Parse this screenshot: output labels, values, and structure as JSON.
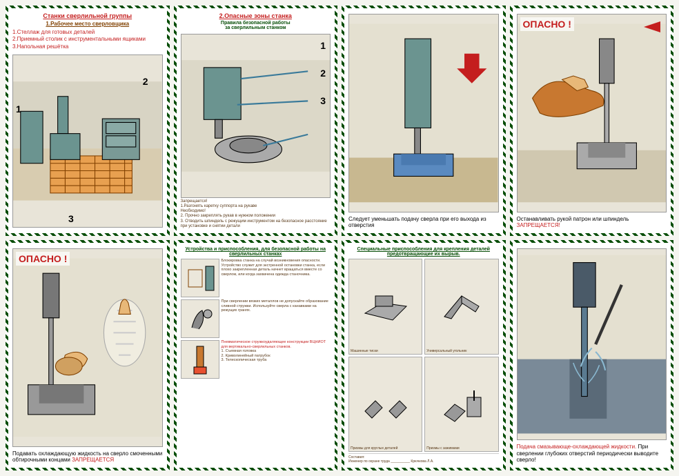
{
  "cards": [
    {
      "title": "Станки сверлильной группы",
      "subtitle": "1.Рабочее место сверловщика",
      "list": "1.Стеллаж для готовых деталей\n2.Приемный столик с  инструментальными ящиками\n3.Напольная решётка",
      "nums": [
        "1",
        "2",
        "3"
      ],
      "illust_colors": {
        "wall": "#d8d4c4",
        "floor": "#e8a050",
        "machine": "#6b9490",
        "cabinet": "#7a9a96"
      }
    },
    {
      "title": "2.Опасные зоны станка",
      "subtitle2": "Правила безопасной работы\nза сверлильным станком",
      "nums": [
        "1",
        "2",
        "3"
      ],
      "smalltext": "Запрещается!\n1.Разгонять каретку суппорта на рукаве\nНеобходимо!\n2. Прочно закреплять рукав в нужном положении\n3. Отводить шпиндель с режущим инструментом на безопасное расстояние при установке и снятии детали",
      "illust_colors": {
        "bg": "#dcd8c8",
        "machine": "#6b9490",
        "base": "#888"
      }
    },
    {
      "caption": "Следует уменьшать подачу сверла при его выхода из отверстия",
      "illust_colors": {
        "bg": "#e4e0d0",
        "machine": "#6b9490",
        "part": "#5a8ac0",
        "floor": "#c8b890"
      }
    },
    {
      "danger": "ОПАСНО !",
      "arrow": true,
      "caption": "Останавливать рукой патрон или шпиндель <span class='red'>ЗАПРЕЩАЕТСЯ!</span>",
      "illust_colors": {
        "bg": "#e4e0d0",
        "hand": "#e8b878",
        "glove": "#c87830",
        "drill": "#888",
        "part": "#aaa"
      }
    },
    {
      "danger": "ОПАСНО !",
      "caption": "Подавать охлаждающую жидкость на сверло смоченными  обтирочными концами <span class='red'>ЗАПРЕЩАЕТСЯ</span>",
      "illust_colors": {
        "bg": "#e4e0d0",
        "drill": "#777",
        "hand": "#e8b878",
        "bandage": "#f0ede0",
        "part": "#999"
      }
    },
    {
      "subtitle2": "Устройства и приспособления, для безопасной работы на сверлильных станках",
      "rows": [
        {
          "text": "Блокировка станка на случай возникновения опасности. Устройство служит для экстренной остановки станка, если плохо закрепленная деталь начнет вращаться вместе со сверлом, или когда захвачена одежда станочника."
        },
        {
          "text": "При сверлении вязких металлов не допускайте образование сливной стружки. Используйте сверла с канавками на режущих гранях."
        },
        {
          "text_red": "Пневматическое стружкоудаляющее конструкции ВЦНИОТ для вертикально-сверлильных станков.",
          "items": "1. Съемная головка\n2. Криволинейный патрубок\n3. Телескопическая труба"
        }
      ]
    },
    {
      "subtitle2": "Специальные приспособления для крепления деталей предотвращающие их вырыв.",
      "cells": [
        {
          "label": "Машинные тиски"
        },
        {
          "label": "Универсальный угольник"
        },
        {
          "label": "Призмы для круглых деталей"
        },
        {
          "label": "Призмы с зажимами"
        }
      ],
      "footer": "Составил:\nИнженер по охране  труда __________ Крючкова Л.А."
    },
    {
      "caption": "<span class='red'>Подача смазывающе-охлаждающей жидкости.</span> При сверлении глубоких отверстий периодически выводите  сверло!",
      "illust_colors": {
        "bg": "#e4e0d0",
        "drill": "#5a7a90",
        "part": "#7a8a98",
        "coolant": "#8ab8d0"
      }
    }
  ],
  "colors": {
    "border": "#064d06",
    "title_red": "#c41e1e",
    "title_brown": "#804000",
    "text_brown": "#5a3a1a"
  }
}
